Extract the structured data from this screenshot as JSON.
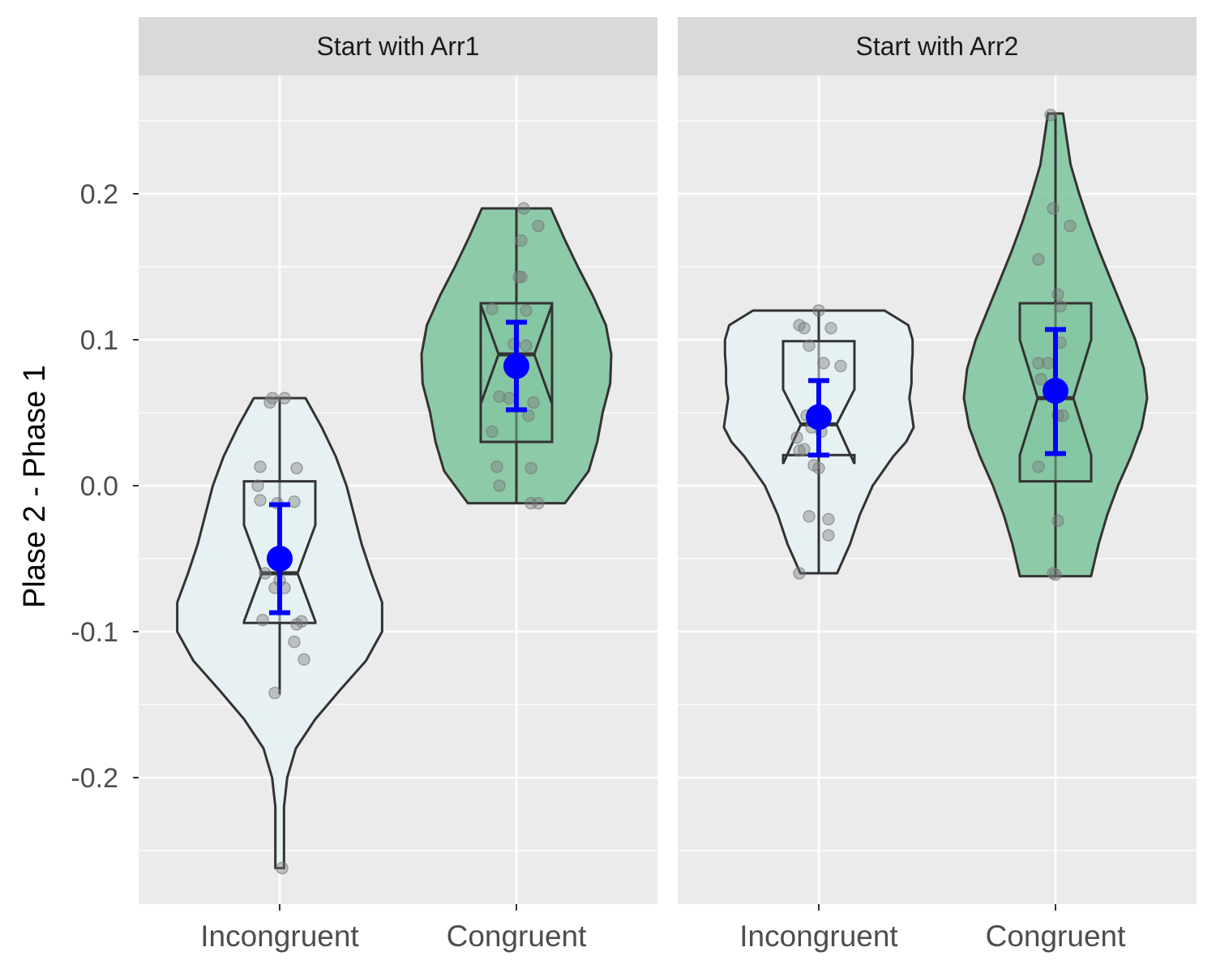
{
  "chart_data": {
    "type": "violin",
    "ylabel": "Plase 2 - Phase 1",
    "xlabel": "",
    "ylim": [
      -0.285,
      0.28
    ],
    "y_ticks": [
      "-0.2",
      "-0.1",
      "0.0",
      "0.1",
      "0.2"
    ],
    "categories": [
      "Incongruent",
      "Congruent"
    ],
    "grid": true,
    "colors": {
      "panel_bg": "#ebebeb",
      "strip_bg": "#d9d9d9",
      "grid": "#ffffff",
      "incongruent_fill": "#e6f2f4",
      "congruent_fill": "#7cc49c",
      "outline": "#333333",
      "points": "#777777",
      "mean": "#0000ff"
    },
    "panels": [
      {
        "strip": "Start with Arr1",
        "groups": [
          {
            "category": "Incongruent",
            "fill": "#e6f2f4",
            "violin": [
              [
                0.06,
                0.24
              ],
              [
                0.04,
                0.39
              ],
              [
                0.02,
                0.52
              ],
              [
                0.0,
                0.62
              ],
              [
                -0.02,
                0.69
              ],
              [
                -0.04,
                0.76
              ],
              [
                -0.06,
                0.85
              ],
              [
                -0.08,
                0.95
              ],
              [
                -0.1,
                0.95
              ],
              [
                -0.12,
                0.8
              ],
              [
                -0.14,
                0.56
              ],
              [
                -0.16,
                0.33
              ],
              [
                -0.18,
                0.15
              ],
              [
                -0.2,
                0.07
              ],
              [
                -0.22,
                0.04
              ],
              [
                -0.24,
                0.04
              ],
              [
                -0.262,
                0.04
              ]
            ],
            "box": {
              "lower": -0.094,
              "q1": -0.094,
              "median": -0.06,
              "q3": 0.003,
              "upper": 0.06,
              "min": -0.143,
              "notch": [
                -0.027,
                -0.093
              ]
            },
            "mean": -0.05,
            "ci": [
              -0.087,
              -0.013
            ],
            "points": [
              [
                -0.3,
                0.06
              ],
              [
                0.2,
                0.06
              ],
              [
                -0.4,
                0.057
              ],
              [
                -0.8,
                0.013
              ],
              [
                0.7,
                0.012
              ],
              [
                -0.9,
                0.0
              ],
              [
                -0.1,
                -0.012
              ],
              [
                -0.8,
                -0.01
              ],
              [
                0.6,
                -0.011
              ],
              [
                -0.6,
                -0.06
              ],
              [
                0.0,
                -0.065
              ],
              [
                -0.2,
                -0.07
              ],
              [
                0.2,
                -0.07
              ],
              [
                -0.7,
                -0.092
              ],
              [
                0.9,
                -0.093
              ],
              [
                0.7,
                -0.095
              ],
              [
                0.6,
                -0.107
              ],
              [
                1.0,
                -0.119
              ],
              [
                -0.2,
                -0.142
              ],
              [
                0.1,
                -0.262
              ]
            ]
          },
          {
            "category": "Congruent",
            "fill": "#7cc49c",
            "violin": [
              [
                0.19,
                0.32
              ],
              [
                0.17,
                0.44
              ],
              [
                0.15,
                0.57
              ],
              [
                0.13,
                0.71
              ],
              [
                0.11,
                0.83
              ],
              [
                0.09,
                0.88
              ],
              [
                0.07,
                0.87
              ],
              [
                0.05,
                0.8
              ],
              [
                0.03,
                0.75
              ],
              [
                0.01,
                0.67
              ],
              [
                -0.012,
                0.45
              ]
            ],
            "box": {
              "lower": 0.03,
              "q1": 0.03,
              "median": 0.09,
              "q3": 0.125,
              "upper": 0.19,
              "min": -0.012,
              "notch": [
                0.056,
                0.124
              ]
            },
            "mean": 0.082,
            "ci": [
              0.052,
              0.112
            ],
            "points": [
              [
                0.3,
                0.19
              ],
              [
                0.9,
                0.178
              ],
              [
                0.2,
                0.168
              ],
              [
                0.1,
                0.143
              ],
              [
                0.2,
                0.143
              ],
              [
                -1.0,
                0.121
              ],
              [
                0.4,
                0.12
              ],
              [
                -0.1,
                0.097
              ],
              [
                0.4,
                0.096
              ],
              [
                -0.7,
                0.061
              ],
              [
                -0.3,
                0.06
              ],
              [
                0.7,
                0.057
              ],
              [
                0.5,
                0.048
              ],
              [
                -1.0,
                0.037
              ],
              [
                -0.8,
                0.013
              ],
              [
                0.6,
                0.012
              ],
              [
                -0.7,
                0.0
              ],
              [
                0.6,
                -0.012
              ],
              [
                0.9,
                -0.012
              ]
            ]
          }
        ]
      },
      {
        "strip": "Start with Arr2",
        "groups": [
          {
            "category": "Incongruent",
            "fill": "#e6f2f4",
            "violin": [
              [
                0.12,
                0.61
              ],
              [
                0.11,
                0.83
              ],
              [
                0.1,
                0.87
              ],
              [
                0.09,
                0.87
              ],
              [
                0.08,
                0.86
              ],
              [
                0.07,
                0.86
              ],
              [
                0.06,
                0.84
              ],
              [
                0.05,
                0.86
              ],
              [
                0.04,
                0.88
              ],
              [
                0.03,
                0.81
              ],
              [
                0.02,
                0.69
              ],
              [
                0.0,
                0.5
              ],
              [
                -0.02,
                0.38
              ],
              [
                -0.04,
                0.29
              ],
              [
                -0.06,
                0.17
              ]
            ],
            "box": {
              "lower": 0.021,
              "q1": 0.021,
              "median": 0.042,
              "q3": 0.099,
              "upper": 0.12,
              "min": -0.06,
              "notch": [
                0.066,
                0.015
              ]
            },
            "mean": 0.047,
            "ci": [
              0.021,
              0.072
            ],
            "points": [
              [
                0.0,
                0.12
              ],
              [
                -0.8,
                0.11
              ],
              [
                -0.6,
                0.108
              ],
              [
                0.5,
                0.108
              ],
              [
                -0.4,
                0.096
              ],
              [
                0.2,
                0.084
              ],
              [
                0.9,
                0.082
              ],
              [
                -0.5,
                0.048
              ],
              [
                -0.3,
                0.04
              ],
              [
                -0.9,
                0.033
              ],
              [
                0.1,
                0.037
              ],
              [
                -0.8,
                0.024
              ],
              [
                -0.6,
                0.025
              ],
              [
                -0.2,
                0.014
              ],
              [
                0.0,
                0.012
              ],
              [
                -0.4,
                -0.021
              ],
              [
                0.4,
                -0.023
              ],
              [
                0.4,
                -0.034
              ],
              [
                -0.8,
                -0.06
              ]
            ]
          },
          {
            "category": "Congruent",
            "fill": "#7cc49c",
            "violin": [
              [
                0.255,
                0.07
              ],
              [
                0.22,
                0.14
              ],
              [
                0.2,
                0.22
              ],
              [
                0.18,
                0.31
              ],
              [
                0.16,
                0.41
              ],
              [
                0.14,
                0.52
              ],
              [
                0.12,
                0.63
              ],
              [
                0.1,
                0.74
              ],
              [
                0.08,
                0.82
              ],
              [
                0.06,
                0.85
              ],
              [
                0.04,
                0.8
              ],
              [
                0.02,
                0.7
              ],
              [
                0.0,
                0.58
              ],
              [
                -0.02,
                0.48
              ],
              [
                -0.04,
                0.4
              ],
              [
                -0.062,
                0.33
              ]
            ],
            "box": {
              "lower": 0.003,
              "q1": 0.003,
              "median": 0.06,
              "q3": 0.125,
              "upper": 0.255,
              "min": -0.062,
              "notch": [
                0.1,
                0.021
              ]
            },
            "mean": 0.065,
            "ci": [
              0.022,
              0.107
            ],
            "points": [
              [
                -0.2,
                0.254
              ],
              [
                -0.1,
                0.19
              ],
              [
                0.6,
                0.178
              ],
              [
                -0.7,
                0.155
              ],
              [
                0.1,
                0.131
              ],
              [
                0.2,
                0.123
              ],
              [
                0.2,
                0.098
              ],
              [
                -0.7,
                0.084
              ],
              [
                -0.3,
                0.084
              ],
              [
                -0.6,
                0.073
              ],
              [
                0.0,
                0.07
              ],
              [
                0.0,
                0.06
              ],
              [
                0.1,
                0.048
              ],
              [
                0.3,
                0.048
              ],
              [
                -0.7,
                0.013
              ],
              [
                0.1,
                -0.024
              ],
              [
                -0.1,
                -0.06
              ],
              [
                0.0,
                -0.061
              ]
            ]
          }
        ]
      }
    ]
  }
}
